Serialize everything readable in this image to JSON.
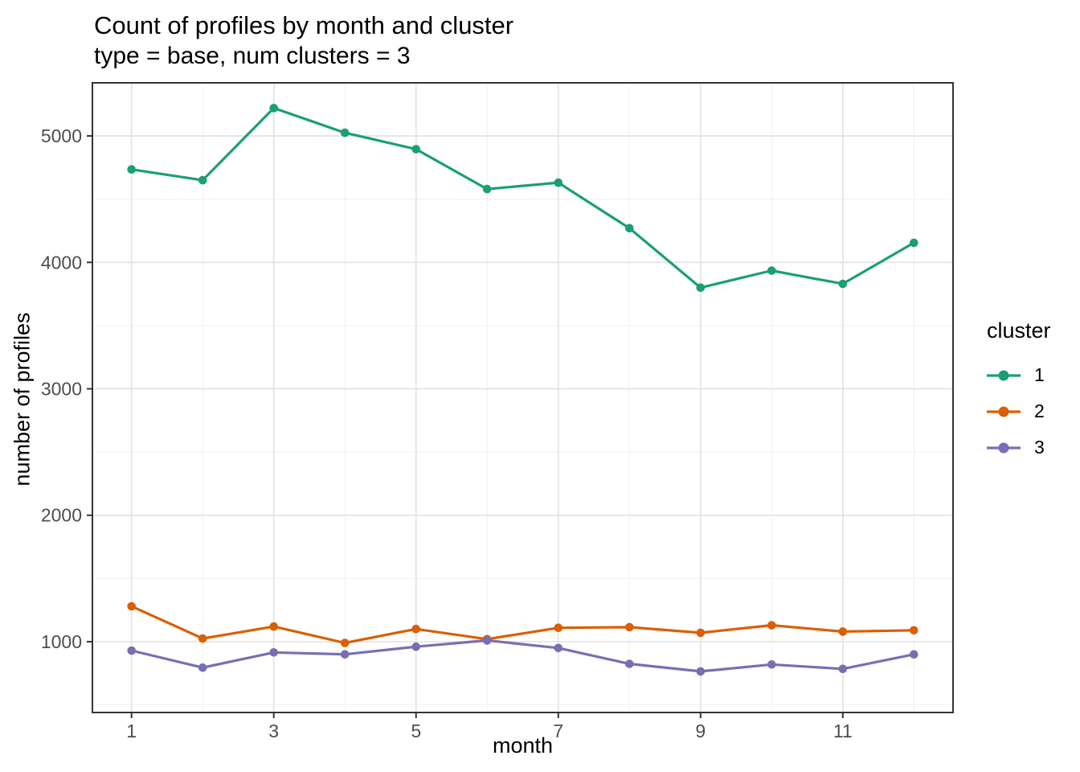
{
  "chart_data": {
    "type": "line",
    "title": "Count of profiles by month and cluster",
    "subtitle": "type = base, num clusters = 3",
    "xlabel": "month",
    "ylabel": "number of profiles",
    "legend_title": "cluster",
    "legend_position": "right",
    "grid": true,
    "x": [
      1,
      2,
      3,
      4,
      5,
      6,
      7,
      8,
      9,
      10,
      11,
      12
    ],
    "xlim": [
      0.45,
      12.55
    ],
    "ylim": [
      440,
      5420
    ],
    "x_ticks": {
      "values": [
        1,
        3,
        5,
        7,
        9,
        11
      ],
      "labels": [
        "1",
        "3",
        "5",
        "7",
        "9",
        "11"
      ]
    },
    "y_ticks": {
      "values": [
        1000,
        2000,
        3000,
        4000,
        5000
      ],
      "labels": [
        "1000",
        "2000",
        "3000",
        "4000",
        "5000"
      ]
    },
    "series": [
      {
        "name": "1",
        "color": "#1b9e77",
        "values": [
          4735,
          4650,
          5220,
          5025,
          4895,
          4580,
          4630,
          4270,
          3800,
          3935,
          3830,
          4155
        ]
      },
      {
        "name": "2",
        "color": "#d95f02",
        "values": [
          1280,
          1025,
          1120,
          990,
          1100,
          1020,
          1110,
          1115,
          1070,
          1130,
          1080,
          1090
        ]
      },
      {
        "name": "3",
        "color": "#7570b3",
        "values": [
          930,
          795,
          915,
          900,
          960,
          1010,
          950,
          825,
          765,
          820,
          785,
          900
        ]
      }
    ]
  },
  "theme": {
    "background": "#ffffff",
    "panel_border": "#333333",
    "grid_major": "#e3e3e3",
    "grid_minor": "#f0f0f0",
    "tick_mark": "#333333",
    "tick_label": "#4d4d4d",
    "text": "#000000"
  }
}
